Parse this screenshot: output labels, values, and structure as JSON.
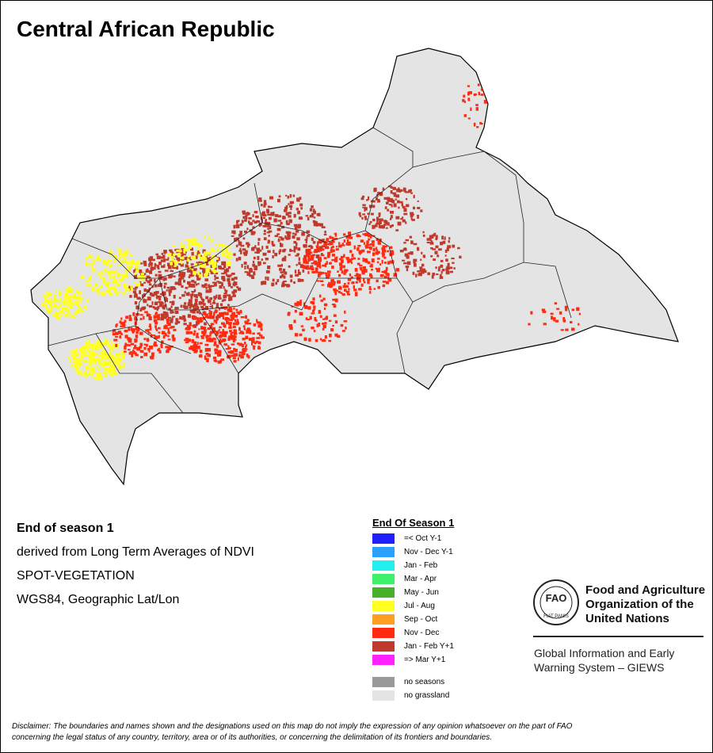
{
  "header": {
    "title": "Central African Republic"
  },
  "info": [
    "End of season 1",
    "derived from Long Term Averages of NDVI",
    "SPOT-VEGETATION",
    "WGS84, Geographic Lat/Lon"
  ],
  "legend": {
    "title": "End Of Season 1",
    "items": [
      {
        "label": "=< Oct Y-1",
        "color": "#1f1fff"
      },
      {
        "label": "Nov - Dec Y-1",
        "color": "#2aa0ff"
      },
      {
        "label": "Jan - Feb",
        "color": "#22f0f0"
      },
      {
        "label": "Mar - Apr",
        "color": "#3ef06a"
      },
      {
        "label": "May - Jun",
        "color": "#46b22a"
      },
      {
        "label": "Jul - Aug",
        "color": "#ffff22"
      },
      {
        "label": "Sep - Oct",
        "color": "#ffa020"
      },
      {
        "label": "Nov - Dec",
        "color": "#ff2a10"
      },
      {
        "label": "Jan - Feb Y+1",
        "color": "#c0392b"
      },
      {
        "label": "=> Mar Y+1",
        "color": "#ff22ff"
      }
    ],
    "extra": [
      {
        "label": "no seasons",
        "color": "#999999"
      },
      {
        "label": "no grassland",
        "color": "#e4e4e4"
      }
    ]
  },
  "logo": {
    "mark": "FAO",
    "motto": "FIAT PANIS",
    "org": [
      "Food and Agriculture",
      "Organization of the",
      "United Nations"
    ],
    "system": [
      "Global Information and Early",
      "Warning System – GIEWS"
    ]
  },
  "disclaimer": [
    "Disclaimer: The boundaries and names shown and the designations used on this map do not imply the expression of any opinion whatsoever on the part of FAO",
    "concerning the legal status of any country, territory, area or of its authorities, or concerning the delimitation of its frontiers and boundaries."
  ]
}
